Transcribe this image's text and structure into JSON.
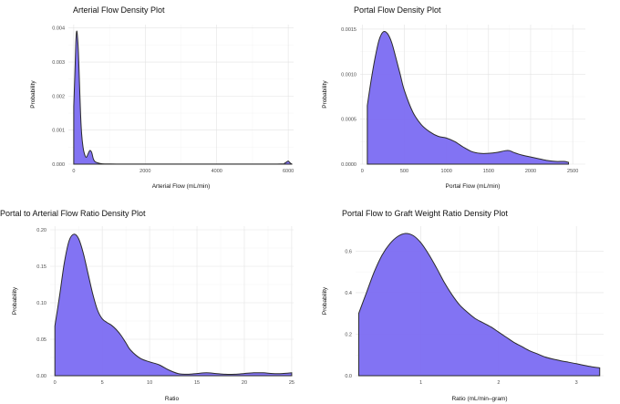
{
  "chart_data": [
    {
      "type": "area",
      "title": "Arterial Flow Density Plot",
      "xlabel": "Arterial Flow (mL/min)",
      "ylabel": "Probability",
      "xlim": [
        -150,
        6150
      ],
      "ylim": [
        0,
        0.0041
      ],
      "xticks": [
        0,
        2000,
        4000,
        6000
      ],
      "xtick_labels": [
        "0",
        "2000",
        "4000",
        "6000"
      ],
      "yticks": [
        0,
        0.001,
        0.002,
        0.003,
        0.004
      ],
      "ytick_labels": [
        "0.000",
        "0.001",
        "0.002",
        "0.003",
        "0.004"
      ],
      "fill_color": "#7b6cf2",
      "line_color": "#2b2b2b",
      "grid": true,
      "x": [
        0,
        30,
        60,
        80,
        100,
        130,
        160,
        190,
        220,
        260,
        300,
        350,
        400,
        450,
        500,
        550,
        600,
        700,
        800,
        1000,
        1500,
        2000,
        3000,
        4000,
        5000,
        5800,
        5900,
        5950,
        6000,
        6050,
        6100
      ],
      "y": [
        0.0017,
        0.0026,
        0.0036,
        0.0039,
        0.0038,
        0.0033,
        0.0024,
        0.0015,
        0.0009,
        0.0005,
        0.0003,
        0.0002,
        0.0003,
        0.0004,
        0.00035,
        0.00015,
        7e-05,
        3e-05,
        1e-05,
        5e-06,
        3e-06,
        2e-06,
        2e-06,
        2e-06,
        2e-06,
        5e-06,
        3e-05,
        6e-05,
        9e-05,
        4e-05,
        5e-06
      ]
    },
    {
      "type": "area",
      "title": "Portal Flow Density Plot",
      "xlabel": "Portal Flow (mL/min)",
      "ylabel": "Probability",
      "xlim": [
        -25,
        2650
      ],
      "ylim": [
        0,
        0.00155
      ],
      "xticks": [
        0,
        500,
        1000,
        1500,
        2000,
        2500
      ],
      "xtick_labels": [
        "0",
        "500",
        "1000",
        "1500",
        "2000",
        "2500"
      ],
      "yticks": [
        0,
        0.0005,
        0.001,
        0.0015
      ],
      "ytick_labels": [
        "0.0000",
        "0.0005",
        "0.0010",
        "0.0015"
      ],
      "fill_color": "#7b6cf2",
      "line_color": "#2b2b2b",
      "grid": true,
      "x": [
        60,
        100,
        150,
        200,
        250,
        300,
        350,
        400,
        450,
        500,
        600,
        700,
        800,
        900,
        1000,
        1100,
        1200,
        1300,
        1400,
        1500,
        1600,
        1700,
        1750,
        1800,
        1900,
        2000,
        2100,
        2200,
        2300,
        2400,
        2450
      ],
      "y": [
        0.00065,
        0.0009,
        0.00117,
        0.00138,
        0.00147,
        0.00145,
        0.00135,
        0.00118,
        0.001,
        0.00082,
        0.00058,
        0.00044,
        0.00036,
        0.00031,
        0.00029,
        0.00025,
        0.00019,
        0.00014,
        0.00012,
        0.00012,
        0.00013,
        0.00015,
        0.00015,
        0.00013,
        0.0001,
        8e-05,
        6e-05,
        4e-05,
        3e-05,
        3e-05,
        2e-05
      ]
    },
    {
      "type": "area",
      "title": "Portal to Arterial Flow Ratio Density Plot",
      "xlabel": "Ratio",
      "ylabel": "Probability",
      "xlim": [
        -0.5,
        25.2
      ],
      "ylim": [
        0,
        0.205
      ],
      "xticks": [
        0,
        5,
        10,
        15,
        20,
        25
      ],
      "xtick_labels": [
        "0",
        "5",
        "10",
        "15",
        "20",
        "25"
      ],
      "yticks": [
        0,
        0.05,
        0.1,
        0.15,
        0.2
      ],
      "ytick_labels": [
        "0.00",
        "0.05",
        "0.10",
        "0.15",
        "0.20"
      ],
      "fill_color": "#7b6cf2",
      "line_color": "#2b2b2b",
      "grid": true,
      "x": [
        0,
        0.5,
        1,
        1.5,
        2,
        2.5,
        3,
        3.5,
        4,
        4.5,
        5,
        5.5,
        6,
        6.5,
        7,
        7.5,
        8,
        9,
        10,
        11,
        12,
        13,
        14,
        15,
        16,
        17,
        18,
        19,
        20,
        21,
        22,
        23,
        24,
        25
      ],
      "y": [
        0.068,
        0.11,
        0.155,
        0.185,
        0.194,
        0.188,
        0.168,
        0.14,
        0.112,
        0.09,
        0.078,
        0.073,
        0.069,
        0.063,
        0.055,
        0.045,
        0.035,
        0.024,
        0.019,
        0.015,
        0.008,
        0.003,
        0.002,
        0.003,
        0.004,
        0.003,
        0.002,
        0.002,
        0.003,
        0.004,
        0.004,
        0.003,
        0.003,
        0.004
      ]
    },
    {
      "type": "area",
      "title": "Portal Flow to Graft Weight Ratio Density Plot",
      "xlabel": "Ratio (mL/min–gram)",
      "ylabel": "Probability",
      "xlim": [
        0.16,
        3.35
      ],
      "ylim": [
        0,
        0.72
      ],
      "xticks": [
        1,
        2,
        3
      ],
      "xtick_labels": [
        "1",
        "2",
        "3"
      ],
      "yticks": [
        0,
        0.2,
        0.4,
        0.6
      ],
      "ytick_labels": [
        "0.0",
        "0.2",
        "0.4",
        "0.6"
      ],
      "fill_color": "#7b6cf2",
      "line_color": "#2b2b2b",
      "grid": true,
      "x": [
        0.2,
        0.3,
        0.4,
        0.5,
        0.6,
        0.7,
        0.8,
        0.9,
        1.0,
        1.1,
        1.2,
        1.3,
        1.4,
        1.5,
        1.6,
        1.7,
        1.8,
        1.9,
        2.0,
        2.1,
        2.2,
        2.3,
        2.4,
        2.5,
        2.6,
        2.7,
        2.8,
        2.9,
        3.0,
        3.1,
        3.2,
        3.3
      ],
      "y": [
        0.3,
        0.4,
        0.5,
        0.58,
        0.635,
        0.67,
        0.685,
        0.675,
        0.64,
        0.585,
        0.52,
        0.45,
        0.39,
        0.34,
        0.305,
        0.275,
        0.255,
        0.235,
        0.21,
        0.185,
        0.16,
        0.14,
        0.12,
        0.105,
        0.09,
        0.08,
        0.072,
        0.065,
        0.058,
        0.05,
        0.043,
        0.038
      ]
    }
  ]
}
